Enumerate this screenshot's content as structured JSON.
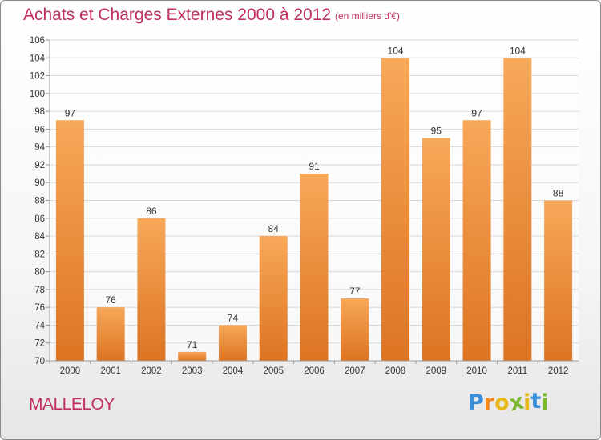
{
  "header": {
    "title": "Achats et Charges Externes 2000 à 2012",
    "subtitle": "(en milliers d'€)"
  },
  "footer": {
    "town": "MALLELOY",
    "logo": {
      "letters": [
        "P",
        "r",
        "o",
        "x",
        "i",
        "t",
        "i"
      ],
      "colors": [
        "#3a8fd8",
        "#f08a1e",
        "#e8b81a",
        "#7cb82f",
        "#e8b81a",
        "#3a8fd8",
        "#7cb82f"
      ]
    }
  },
  "chart_data": {
    "type": "bar",
    "categories": [
      "2000",
      "2001",
      "2002",
      "2003",
      "2004",
      "2005",
      "2006",
      "2007",
      "2008",
      "2009",
      "2010",
      "2011",
      "2012"
    ],
    "values": [
      97,
      76,
      86,
      71,
      74,
      84,
      91,
      77,
      104,
      95,
      97,
      104,
      88
    ],
    "title": "Achats et Charges Externes 2000 à 2012",
    "xlabel": "",
    "ylabel": "",
    "ylim": [
      70,
      106
    ],
    "yticks": [
      70,
      72,
      74,
      76,
      78,
      80,
      82,
      84,
      86,
      88,
      90,
      92,
      94,
      96,
      98,
      100,
      102,
      104,
      106
    ],
    "grid": true,
    "data_labels": true,
    "colors": {
      "bar_light": "#f7a859",
      "bar_dark": "#dd7422",
      "axis_text": "#333333",
      "title": "#c0305f"
    }
  }
}
